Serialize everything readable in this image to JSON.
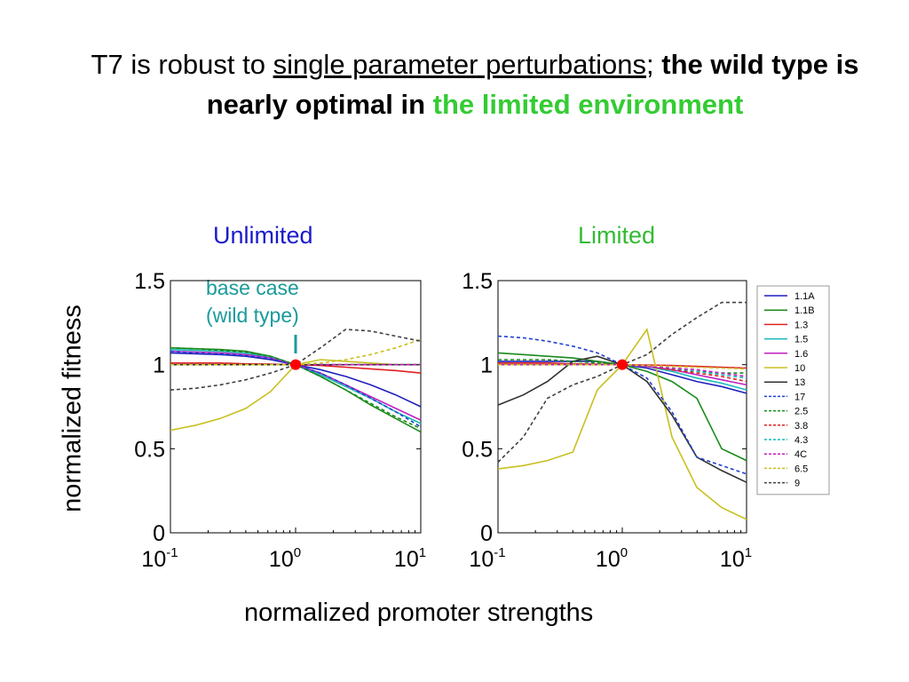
{
  "slide": {
    "title_part1": "T7 is robust to ",
    "title_underlined": "single parameter perturbations",
    "title_semicolon": ";",
    "title_bold": " the wild type is nearly optimal in ",
    "title_green": "the limited environment",
    "ylabel": "normalized fitness",
    "xlabel": "normalized promoter strengths",
    "annotation_line1": "base case",
    "annotation_line2": "(wild type)"
  },
  "colors": {
    "title_green": "#33cc33",
    "unlimited_label": "#1a1acc",
    "limited_label": "#33bb33",
    "annotation": "#1a9a9a",
    "base_point": "#ff0000"
  },
  "chart_data": [
    {
      "type": "line",
      "title": "Unlimited",
      "xscale": "log",
      "xlim": [
        0.1,
        10
      ],
      "ylim": [
        0,
        1.5
      ],
      "yticks": [
        "0",
        "0.5",
        "1",
        "1.5"
      ],
      "xticks": [
        {
          "base": "10",
          "exp": "-1"
        },
        {
          "base": "10",
          "exp": "0"
        },
        {
          "base": "10",
          "exp": "1"
        }
      ],
      "base_point": {
        "x": 1,
        "y": 1
      },
      "x": [
        0.1,
        0.16,
        0.25,
        0.4,
        0.63,
        1,
        1.58,
        2.51,
        3.98,
        6.31,
        10
      ],
      "series": [
        {
          "name": "1.1A",
          "color": "#1f1fbf",
          "dash": "solid",
          "values": [
            1.07,
            1.065,
            1.06,
            1.05,
            1.03,
            1.0,
            0.97,
            0.93,
            0.88,
            0.82,
            0.75
          ]
        },
        {
          "name": "1.1B",
          "color": "#1a8a1a",
          "dash": "solid",
          "values": [
            1.1,
            1.095,
            1.09,
            1.08,
            1.05,
            1.0,
            0.93,
            0.85,
            0.76,
            0.68,
            0.6
          ]
        },
        {
          "name": "1.3",
          "color": "#e02020",
          "dash": "solid",
          "values": [
            1.01,
            1.01,
            1.01,
            1.005,
            1.003,
            1.0,
            0.995,
            0.985,
            0.975,
            0.965,
            0.95
          ]
        },
        {
          "name": "1.5",
          "color": "#18b8b8",
          "dash": "solid",
          "values": [
            1.09,
            1.085,
            1.08,
            1.07,
            1.045,
            1.0,
            0.94,
            0.87,
            0.8,
            0.72,
            0.65
          ]
        },
        {
          "name": "1.6",
          "color": "#c020c0",
          "dash": "solid",
          "values": [
            1.08,
            1.075,
            1.07,
            1.06,
            1.04,
            1.0,
            0.95,
            0.88,
            0.81,
            0.74,
            0.67
          ]
        },
        {
          "name": "10",
          "color": "#c8c020",
          "dash": "solid",
          "values": [
            0.61,
            0.64,
            0.68,
            0.74,
            0.84,
            1.0,
            1.03,
            1.02,
            1.01,
            1.0,
            1.0
          ]
        },
        {
          "name": "13",
          "color": "#303030",
          "dash": "solid",
          "values": [
            1.0,
            1.0,
            1.0,
            1.0,
            1.0,
            1.0,
            1.0,
            1.0,
            1.0,
            1.0,
            1.0
          ]
        },
        {
          "name": "17",
          "color": "#2040d0",
          "dash": "dashed",
          "values": [
            1.08,
            1.07,
            1.065,
            1.055,
            1.035,
            1.0,
            0.95,
            0.88,
            0.8,
            0.72,
            0.63
          ]
        },
        {
          "name": "2.5",
          "color": "#1a8a1a",
          "dash": "dashed",
          "values": [
            1.1,
            1.095,
            1.085,
            1.075,
            1.05,
            1.0,
            0.93,
            0.85,
            0.77,
            0.69,
            0.62
          ]
        },
        {
          "name": "3.8",
          "color": "#e02020",
          "dash": "dashed",
          "values": [
            1.0,
            1.0,
            1.0,
            1.0,
            1.0,
            1.0,
            1.0,
            1.0,
            1.0,
            1.0,
            1.0
          ]
        },
        {
          "name": "4.3",
          "color": "#18b8b8",
          "dash": "dashed",
          "values": [
            1.0,
            1.0,
            1.0,
            1.0,
            1.0,
            1.0,
            1.0,
            1.0,
            1.0,
            1.0,
            1.0
          ]
        },
        {
          "name": "4C",
          "color": "#c020c0",
          "dash": "dashed",
          "values": [
            1.0,
            1.0,
            1.0,
            1.0,
            1.0,
            1.0,
            1.0,
            1.0,
            1.0,
            1.0,
            1.0
          ]
        },
        {
          "name": "6.5",
          "color": "#c8c020",
          "dash": "dashed",
          "values": [
            1.0,
            1.0,
            1.0,
            1.0,
            1.0,
            1.0,
            1.01,
            1.03,
            1.06,
            1.1,
            1.15
          ]
        },
        {
          "name": "9",
          "color": "#404040",
          "dash": "dashed",
          "values": [
            0.85,
            0.86,
            0.88,
            0.91,
            0.95,
            1.0,
            1.1,
            1.21,
            1.2,
            1.17,
            1.14
          ]
        }
      ]
    },
    {
      "type": "line",
      "title": "Limited",
      "xscale": "log",
      "xlim": [
        0.1,
        10
      ],
      "ylim": [
        0,
        1.5
      ],
      "yticks": [
        "0",
        "0.5",
        "1",
        "1.5"
      ],
      "xticks": [
        {
          "base": "10",
          "exp": "-1"
        },
        {
          "base": "10",
          "exp": "0"
        },
        {
          "base": "10",
          "exp": "1"
        }
      ],
      "base_point": {
        "x": 1,
        "y": 1
      },
      "legend": "right",
      "x": [
        0.1,
        0.16,
        0.25,
        0.4,
        0.63,
        1,
        1.58,
        2.51,
        3.98,
        6.31,
        10
      ],
      "series": [
        {
          "name": "1.1A",
          "color": "#1f1fbf",
          "dash": "solid",
          "values": [
            1.02,
            1.02,
            1.02,
            1.02,
            1.02,
            1.0,
            0.98,
            0.94,
            0.9,
            0.87,
            0.83
          ]
        },
        {
          "name": "1.1B",
          "color": "#1a8a1a",
          "dash": "solid",
          "values": [
            1.07,
            1.06,
            1.05,
            1.04,
            1.02,
            1.0,
            0.96,
            0.9,
            0.8,
            0.5,
            0.43
          ]
        },
        {
          "name": "1.3",
          "color": "#e02020",
          "dash": "solid",
          "values": [
            1.01,
            1.01,
            1.01,
            1.005,
            1.003,
            1.0,
            0.998,
            0.995,
            0.99,
            0.985,
            0.98
          ]
        },
        {
          "name": "1.5",
          "color": "#18b8b8",
          "dash": "solid",
          "values": [
            1.0,
            1.0,
            1.0,
            1.0,
            1.0,
            1.0,
            0.99,
            0.96,
            0.92,
            0.89,
            0.85
          ]
        },
        {
          "name": "1.6",
          "color": "#c020c0",
          "dash": "solid",
          "values": [
            1.0,
            1.0,
            1.0,
            1.0,
            1.0,
            1.0,
            0.99,
            0.97,
            0.94,
            0.91,
            0.88
          ]
        },
        {
          "name": "10",
          "color": "#c8c020",
          "dash": "solid",
          "values": [
            0.38,
            0.4,
            0.43,
            0.48,
            0.85,
            1.0,
            1.21,
            0.57,
            0.27,
            0.15,
            0.08
          ]
        },
        {
          "name": "13",
          "color": "#303030",
          "dash": "solid",
          "values": [
            0.76,
            0.82,
            0.9,
            1.02,
            1.05,
            1.0,
            0.9,
            0.7,
            0.45,
            0.37,
            0.3
          ]
        },
        {
          "name": "17",
          "color": "#2040d0",
          "dash": "dashed",
          "values": [
            1.17,
            1.16,
            1.14,
            1.11,
            1.07,
            1.0,
            0.92,
            0.72,
            0.45,
            0.4,
            0.35
          ]
        },
        {
          "name": "2.5",
          "color": "#1a8a1a",
          "dash": "dashed",
          "values": [
            1.03,
            1.03,
            1.03,
            1.02,
            1.01,
            1.0,
            0.99,
            0.97,
            0.96,
            0.95,
            0.95
          ]
        },
        {
          "name": "3.8",
          "color": "#e02020",
          "dash": "dashed",
          "values": [
            1.0,
            1.0,
            1.0,
            1.0,
            1.0,
            1.0,
            0.99,
            0.97,
            0.95,
            0.93,
            0.9
          ]
        },
        {
          "name": "4.3",
          "color": "#18b8b8",
          "dash": "dashed",
          "values": [
            1.0,
            1.0,
            1.0,
            1.0,
            1.0,
            1.0,
            0.99,
            0.98,
            0.96,
            0.94,
            0.92
          ]
        },
        {
          "name": "4C",
          "color": "#c020c0",
          "dash": "dashed",
          "values": [
            1.0,
            1.0,
            1.0,
            1.0,
            1.0,
            1.0,
            0.99,
            0.98,
            0.97,
            0.95,
            0.93
          ]
        },
        {
          "name": "6.5",
          "color": "#c8c020",
          "dash": "dashed",
          "values": [
            1.0,
            1.0,
            1.0,
            1.0,
            1.0,
            1.0,
            0.995,
            0.99,
            0.985,
            0.98,
            0.975
          ]
        },
        {
          "name": "9",
          "color": "#404040",
          "dash": "dashed",
          "values": [
            0.42,
            0.57,
            0.8,
            0.88,
            0.93,
            1.0,
            1.06,
            1.18,
            1.28,
            1.37,
            1.37
          ]
        }
      ]
    }
  ]
}
